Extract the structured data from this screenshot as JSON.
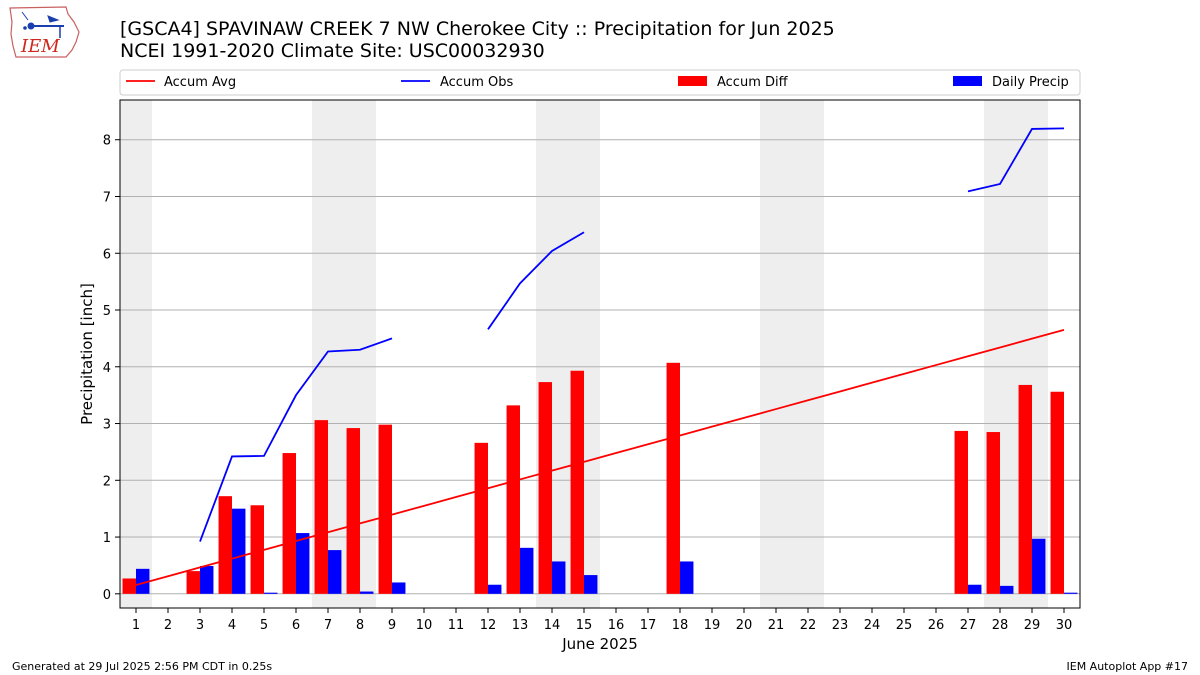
{
  "header": {
    "title_line1": "[GSCA4] SPAVINAW CREEK 7 NW Cherokee City :: Precipitation for Jun 2025",
    "title_line2": "NCEI 1991-2020 Climate Site: USC00032930",
    "logo_text": "IEM"
  },
  "footer": {
    "generated": "Generated at 29 Jul 2025 2:56 PM CDT in 0.25s",
    "app": "IEM Autoplot App #17"
  },
  "colors": {
    "accum_avg": "#ff0000",
    "accum_obs": "#0000ff",
    "accum_diff": "#ff0000",
    "daily_precip": "#0000ff",
    "weekend_shade": "#eeeeee",
    "grid": "#b0b0b0"
  },
  "chart_data": {
    "type": "bar",
    "xlabel": "June 2025",
    "ylabel": "Precipitation [inch]",
    "ylim": [
      -0.25,
      8.7
    ],
    "yticks": [
      0,
      1,
      2,
      3,
      4,
      5,
      6,
      7,
      8
    ],
    "x": [
      1,
      2,
      3,
      4,
      5,
      6,
      7,
      8,
      9,
      10,
      11,
      12,
      13,
      14,
      15,
      16,
      17,
      18,
      19,
      20,
      21,
      22,
      23,
      24,
      25,
      26,
      27,
      28,
      29,
      30
    ],
    "grid": "horizontal",
    "legend_position": "top",
    "weekend_days": [
      1,
      7,
      8,
      14,
      15,
      21,
      22,
      28,
      29
    ],
    "legend": [
      {
        "label": "Accum Avg",
        "kind": "line",
        "color": "#ff0000"
      },
      {
        "label": "Accum Obs",
        "kind": "line",
        "color": "#0000ff"
      },
      {
        "label": "Accum Diff",
        "kind": "bar",
        "color": "#ff0000"
      },
      {
        "label": "Daily Precip",
        "kind": "bar",
        "color": "#0000ff"
      }
    ],
    "series": [
      {
        "name": "Accum Avg",
        "type": "line",
        "values": [
          0.155,
          0.31,
          0.465,
          0.62,
          0.775,
          0.93,
          1.085,
          1.24,
          1.395,
          1.55,
          1.705,
          1.86,
          2.015,
          2.17,
          2.325,
          2.48,
          2.635,
          2.79,
          2.945,
          3.1,
          3.255,
          3.41,
          3.565,
          3.72,
          3.875,
          4.03,
          4.185,
          4.34,
          4.495,
          4.65
        ]
      },
      {
        "name": "Accum Obs",
        "type": "line",
        "values": [
          null,
          null,
          0.92,
          2.42,
          2.43,
          3.5,
          4.27,
          4.3,
          4.5,
          null,
          null,
          4.66,
          5.47,
          6.04,
          6.37,
          null,
          null,
          null,
          null,
          null,
          null,
          null,
          null,
          null,
          null,
          null,
          7.09,
          7.22,
          8.19,
          8.2
        ]
      },
      {
        "name": "Accum Diff",
        "type": "bar",
        "values": [
          0.27,
          0,
          0.4,
          1.72,
          1.56,
          2.48,
          3.06,
          2.92,
          2.98,
          0,
          0,
          2.66,
          3.32,
          3.73,
          3.93,
          0,
          0,
          4.07,
          0,
          0,
          0,
          0,
          0,
          0,
          0,
          0,
          2.87,
          2.85,
          3.68,
          3.56
        ]
      },
      {
        "name": "Daily Precip",
        "type": "bar",
        "values": [
          0.44,
          0,
          0.49,
          1.5,
          0.02,
          1.07,
          0.77,
          0.04,
          0.2,
          0,
          0,
          0.16,
          0.81,
          0.57,
          0.33,
          0,
          0,
          0.57,
          0,
          0,
          0,
          0,
          0,
          0,
          0,
          0,
          0.16,
          0.14,
          0.97,
          0.02
        ]
      }
    ]
  }
}
